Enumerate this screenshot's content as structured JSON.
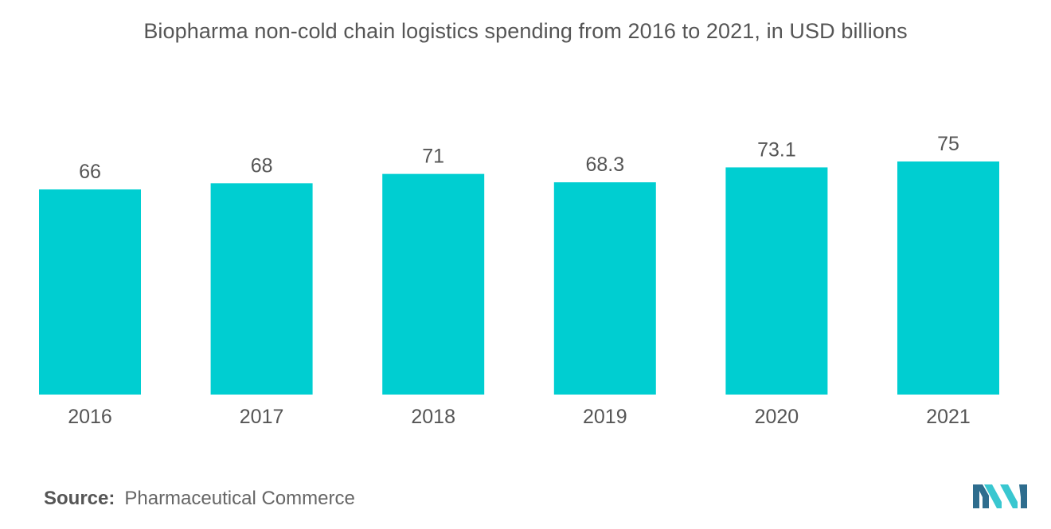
{
  "title": "Biopharma non-cold chain logistics spending from 2016 to 2021, in USD billions",
  "source": {
    "label": "Source:",
    "text": "Pharmaceutical Commerce"
  },
  "logo_icon": "mordor-intelligence-logo-icon",
  "colors": {
    "bar": "#00CED1",
    "text": "#555555",
    "logo_dark": "#2E6D8E",
    "logo_light": "#39C7D0"
  },
  "chart_data": {
    "type": "bar",
    "categories": [
      "2016",
      "2017",
      "2018",
      "2019",
      "2020",
      "2021"
    ],
    "values": [
      66,
      68,
      71,
      68.3,
      73.1,
      75
    ],
    "data_labels": [
      "66",
      "68",
      "71",
      "68.3",
      "73.1",
      "75"
    ],
    "title": "Biopharma non-cold chain logistics spending from 2016 to 2021, in USD billions",
    "xlabel": "",
    "ylabel": "",
    "ylim": [
      0,
      75
    ],
    "grid": false,
    "legend": "none"
  }
}
